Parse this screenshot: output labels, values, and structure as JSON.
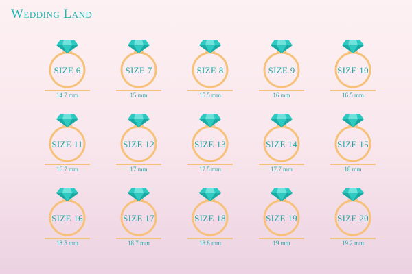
{
  "brand": {
    "title": "Wedding Land"
  },
  "colors": {
    "band": "#f6c27a",
    "gem": "#2ec9c1",
    "gem_dark": "#1aa9a3",
    "gem_light": "#6fe3db",
    "text": "#22aaa9"
  },
  "rings": [
    {
      "size": "SIZE 6",
      "mm": "14.7 mm"
    },
    {
      "size": "SIZE 7",
      "mm": "15 mm"
    },
    {
      "size": "SIZE 8",
      "mm": "15.5 mm"
    },
    {
      "size": "SIZE 9",
      "mm": "16 mm"
    },
    {
      "size": "SIZE 10",
      "mm": "16.5 mm"
    },
    {
      "size": "SIZE 11",
      "mm": "16.7 mm"
    },
    {
      "size": "SIZE 12",
      "mm": "17 mm"
    },
    {
      "size": "SIZE 13",
      "mm": "17.5 mm"
    },
    {
      "size": "SIZE 14",
      "mm": "17.7 mm"
    },
    {
      "size": "SIZE 15",
      "mm": "18 mm"
    },
    {
      "size": "SIZE 16",
      "mm": "18.5 mm"
    },
    {
      "size": "SIZE 17",
      "mm": "18.7 mm"
    },
    {
      "size": "SIZE 18",
      "mm": "18.8 mm"
    },
    {
      "size": "SIZE 19",
      "mm": "19 mm"
    },
    {
      "size": "SIZE 20",
      "mm": "19.2 mm"
    }
  ]
}
